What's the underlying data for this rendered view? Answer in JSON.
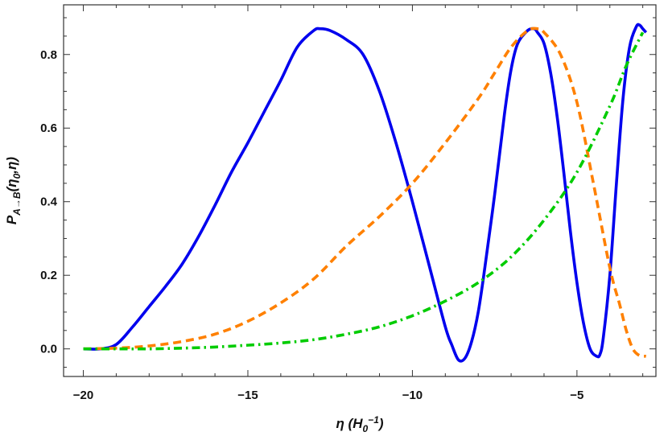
{
  "chart_data": {
    "type": "line",
    "title": "",
    "xlabel": "η (H₀⁻¹)",
    "ylabel": "P_{A→B}(η₀,η)",
    "xlim": [
      -20.6,
      -2.6
    ],
    "ylim": [
      -0.075,
      0.935
    ],
    "x_ticks": [
      -20,
      -15,
      -10,
      -5
    ],
    "y_ticks": [
      0.0,
      0.2,
      0.4,
      0.6,
      0.8
    ],
    "x_tick_labels": [
      "−20",
      "−15",
      "−10",
      "−5"
    ],
    "y_tick_labels": [
      "0.0",
      "0.2",
      "0.4",
      "0.6",
      "0.8"
    ],
    "grid": false,
    "series": [
      {
        "color": "#0000ee",
        "dash": "solid",
        "x": [
          -20,
          -19.5,
          -19,
          -18.5,
          -18,
          -17.5,
          -17,
          -16.5,
          -16,
          -15.5,
          -15,
          -14.5,
          -14,
          -13.5,
          -13,
          -12.8,
          -12.5,
          -12,
          -11.5,
          -11,
          -10.5,
          -10,
          -9.5,
          -9,
          -8.8,
          -8.6,
          -8.4,
          -8.2,
          -8,
          -7.8,
          -7.5,
          -7.2,
          -7,
          -6.8,
          -6.5,
          -6.3,
          -6.2,
          -6,
          -5.8,
          -5.6,
          -5.4,
          -5.2,
          -5,
          -4.8,
          -4.6,
          -4.4,
          -4.3,
          -4.2,
          -4,
          -3.8,
          -3.6,
          -3.4,
          -3.2,
          -3.1,
          -3.0,
          -2.9
        ],
        "y": [
          0.0,
          0.0,
          0.012,
          0.06,
          0.115,
          0.17,
          0.23,
          0.305,
          0.39,
          0.48,
          0.56,
          0.645,
          0.73,
          0.82,
          0.865,
          0.87,
          0.865,
          0.84,
          0.8,
          0.7,
          0.56,
          0.4,
          0.23,
          0.06,
          0.01,
          -0.03,
          -0.025,
          0.02,
          0.1,
          0.22,
          0.42,
          0.64,
          0.76,
          0.83,
          0.865,
          0.87,
          0.86,
          0.83,
          0.75,
          0.63,
          0.48,
          0.32,
          0.18,
          0.07,
          0.0,
          -0.02,
          -0.015,
          0.03,
          0.2,
          0.45,
          0.68,
          0.82,
          0.875,
          0.88,
          0.87,
          0.86
        ]
      },
      {
        "color": "#ff8000",
        "dash": "dashed",
        "x": [
          -20,
          -19,
          -18,
          -17,
          -16,
          -15,
          -14,
          -13,
          -12,
          -11,
          -10,
          -9,
          -8,
          -7.5,
          -7,
          -6.5,
          -6.2,
          -6,
          -5.5,
          -5,
          -4.5,
          -4,
          -3.7,
          -3.5,
          -3.3,
          -3.1,
          -2.9
        ],
        "y": [
          0.0,
          0.002,
          0.008,
          0.02,
          0.04,
          0.075,
          0.125,
          0.19,
          0.28,
          0.36,
          0.45,
          0.56,
          0.68,
          0.75,
          0.82,
          0.865,
          0.87,
          0.86,
          0.8,
          0.67,
          0.45,
          0.22,
          0.12,
          0.05,
          0.0,
          -0.018,
          -0.02
        ]
      },
      {
        "color": "#00cc00",
        "dash": "dashdot",
        "x": [
          -20,
          -19,
          -18,
          -17,
          -16,
          -15,
          -14,
          -13,
          -12,
          -11,
          -10,
          -9,
          -8,
          -7,
          -6,
          -5,
          -4,
          -3.5,
          -3
        ],
        "y": [
          0.0,
          0.0,
          0.0,
          0.002,
          0.005,
          0.01,
          0.016,
          0.025,
          0.04,
          0.06,
          0.09,
          0.13,
          0.18,
          0.25,
          0.35,
          0.48,
          0.66,
          0.77,
          0.86
        ]
      }
    ]
  }
}
